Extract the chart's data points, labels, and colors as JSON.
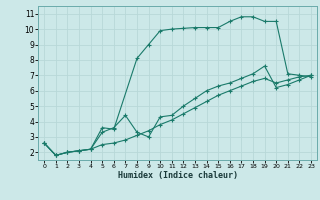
{
  "title": "",
  "xlabel": "Humidex (Indice chaleur)",
  "ylabel": "",
  "background_color": "#cce8e8",
  "line_color": "#1a7a6a",
  "grid_color": "#b8d8d8",
  "xlim": [
    -0.5,
    23.5
  ],
  "ylim": [
    1.5,
    11.5
  ],
  "xticks": [
    0,
    1,
    2,
    3,
    4,
    5,
    6,
    7,
    8,
    9,
    10,
    11,
    12,
    13,
    14,
    15,
    16,
    17,
    18,
    19,
    20,
    21,
    22,
    23
  ],
  "yticks": [
    2,
    3,
    4,
    5,
    6,
    7,
    8,
    9,
    10,
    11
  ],
  "lines": [
    {
      "x": [
        0,
        1,
        2,
        3,
        4,
        5,
        6,
        8,
        9,
        10,
        11,
        12,
        13,
        14,
        15,
        16,
        17,
        18,
        19,
        20,
        21,
        22,
        23
      ],
      "y": [
        2.6,
        1.8,
        2.0,
        2.1,
        2.2,
        3.6,
        3.5,
        8.1,
        9.0,
        9.9,
        10.0,
        10.05,
        10.1,
        10.1,
        10.1,
        10.5,
        10.8,
        10.8,
        10.5,
        10.5,
        7.1,
        7.0,
        6.9
      ]
    },
    {
      "x": [
        0,
        1,
        2,
        3,
        4,
        5,
        6,
        7,
        8,
        9,
        10,
        11,
        12,
        13,
        14,
        15,
        16,
        17,
        18,
        19,
        20,
        21,
        22,
        23
      ],
      "y": [
        2.6,
        1.8,
        2.0,
        2.1,
        2.2,
        3.3,
        3.6,
        4.4,
        3.3,
        3.0,
        4.3,
        4.4,
        5.0,
        5.5,
        6.0,
        6.3,
        6.5,
        6.8,
        7.1,
        7.6,
        6.2,
        6.4,
        6.7,
        7.0
      ]
    },
    {
      "x": [
        0,
        1,
        2,
        3,
        4,
        5,
        6,
        7,
        8,
        9,
        10,
        11,
        12,
        13,
        14,
        15,
        16,
        17,
        18,
        19,
        20,
        21,
        22,
        23
      ],
      "y": [
        2.6,
        1.8,
        2.0,
        2.1,
        2.2,
        2.5,
        2.6,
        2.8,
        3.1,
        3.4,
        3.8,
        4.1,
        4.5,
        4.9,
        5.3,
        5.7,
        6.0,
        6.3,
        6.6,
        6.8,
        6.5,
        6.7,
        6.9,
        7.0
      ]
    }
  ]
}
